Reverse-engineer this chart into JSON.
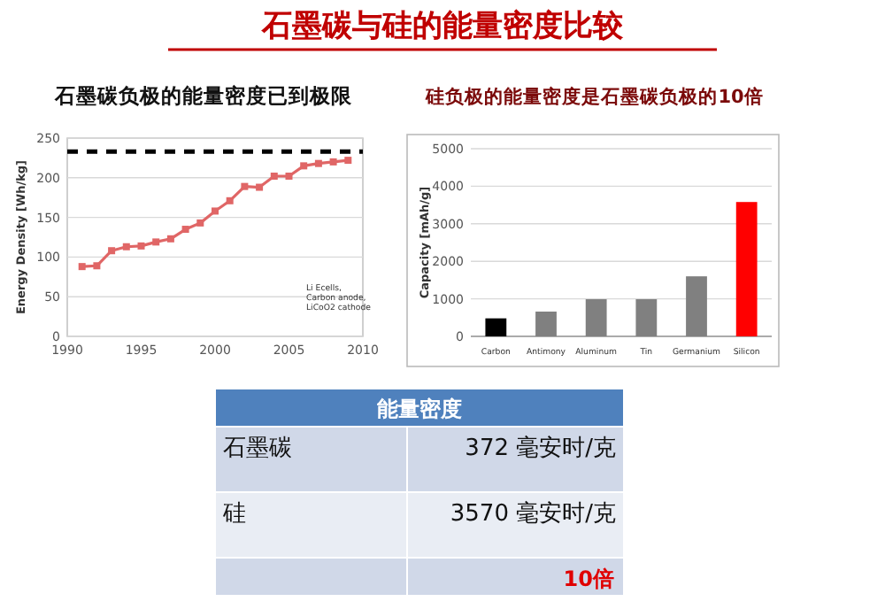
{
  "chart_data": [
    {
      "type": "other",
      "title": "石墨碳与硅的能量密度比较"
    },
    {
      "type": "line",
      "title": "石墨碳负极的能量密度已到极限",
      "ylabel": "Energy Density [Wh/kg]",
      "x": [
        1991,
        1992,
        1993,
        1994,
        1995,
        1996,
        1997,
        1998,
        1999,
        2000,
        2001,
        2002,
        2003,
        2004,
        2005,
        2006,
        2007,
        2008,
        2009
      ],
      "series": [
        {
          "color": "#e06666",
          "values": [
            88,
            89,
            108,
            113,
            114,
            119,
            123,
            135,
            143,
            158,
            171,
            189,
            188,
            202,
            202,
            215,
            218,
            220,
            222
          ]
        }
      ],
      "xlim": [
        1990,
        2010
      ],
      "xticks": [
        1990,
        1995,
        2000,
        2005,
        2010
      ],
      "ylim": [
        0,
        250
      ],
      "yticks": [
        0,
        50,
        100,
        150,
        200,
        250
      ],
      "grid": "y",
      "marker": "square",
      "line_style": "solid",
      "ref_lines": [
        {
          "axis": "y",
          "value": 233,
          "color": "#000000",
          "line_style": "dashed"
        }
      ],
      "annotations": [
        "Li Ecells, Carbon anode, LiCoO2 cathode"
      ]
    },
    {
      "type": "bar",
      "title": "硅负极的能量密度是石墨碳负极的10倍",
      "ylabel": "Capacity [mAh/g]",
      "categories": [
        "Carbon",
        "Antimony",
        "Aluminum",
        "Tin",
        "Germanium",
        "Silicon"
      ],
      "values": [
        480,
        660,
        990,
        990,
        1600,
        3580
      ],
      "colors": [
        "#000000",
        "#808080",
        "#808080",
        "#808080",
        "#808080",
        "#ff0000"
      ],
      "ylim": [
        0,
        5000
      ],
      "yticks": [
        0,
        1000,
        2000,
        3000,
        4000,
        5000
      ],
      "grid": "y"
    },
    {
      "type": "other",
      "title": "能量密度",
      "annotations": [
        "石墨碳",
        "372 毫安时/克",
        "硅",
        "3570 毫安时/克",
        "10倍"
      ]
    }
  ]
}
